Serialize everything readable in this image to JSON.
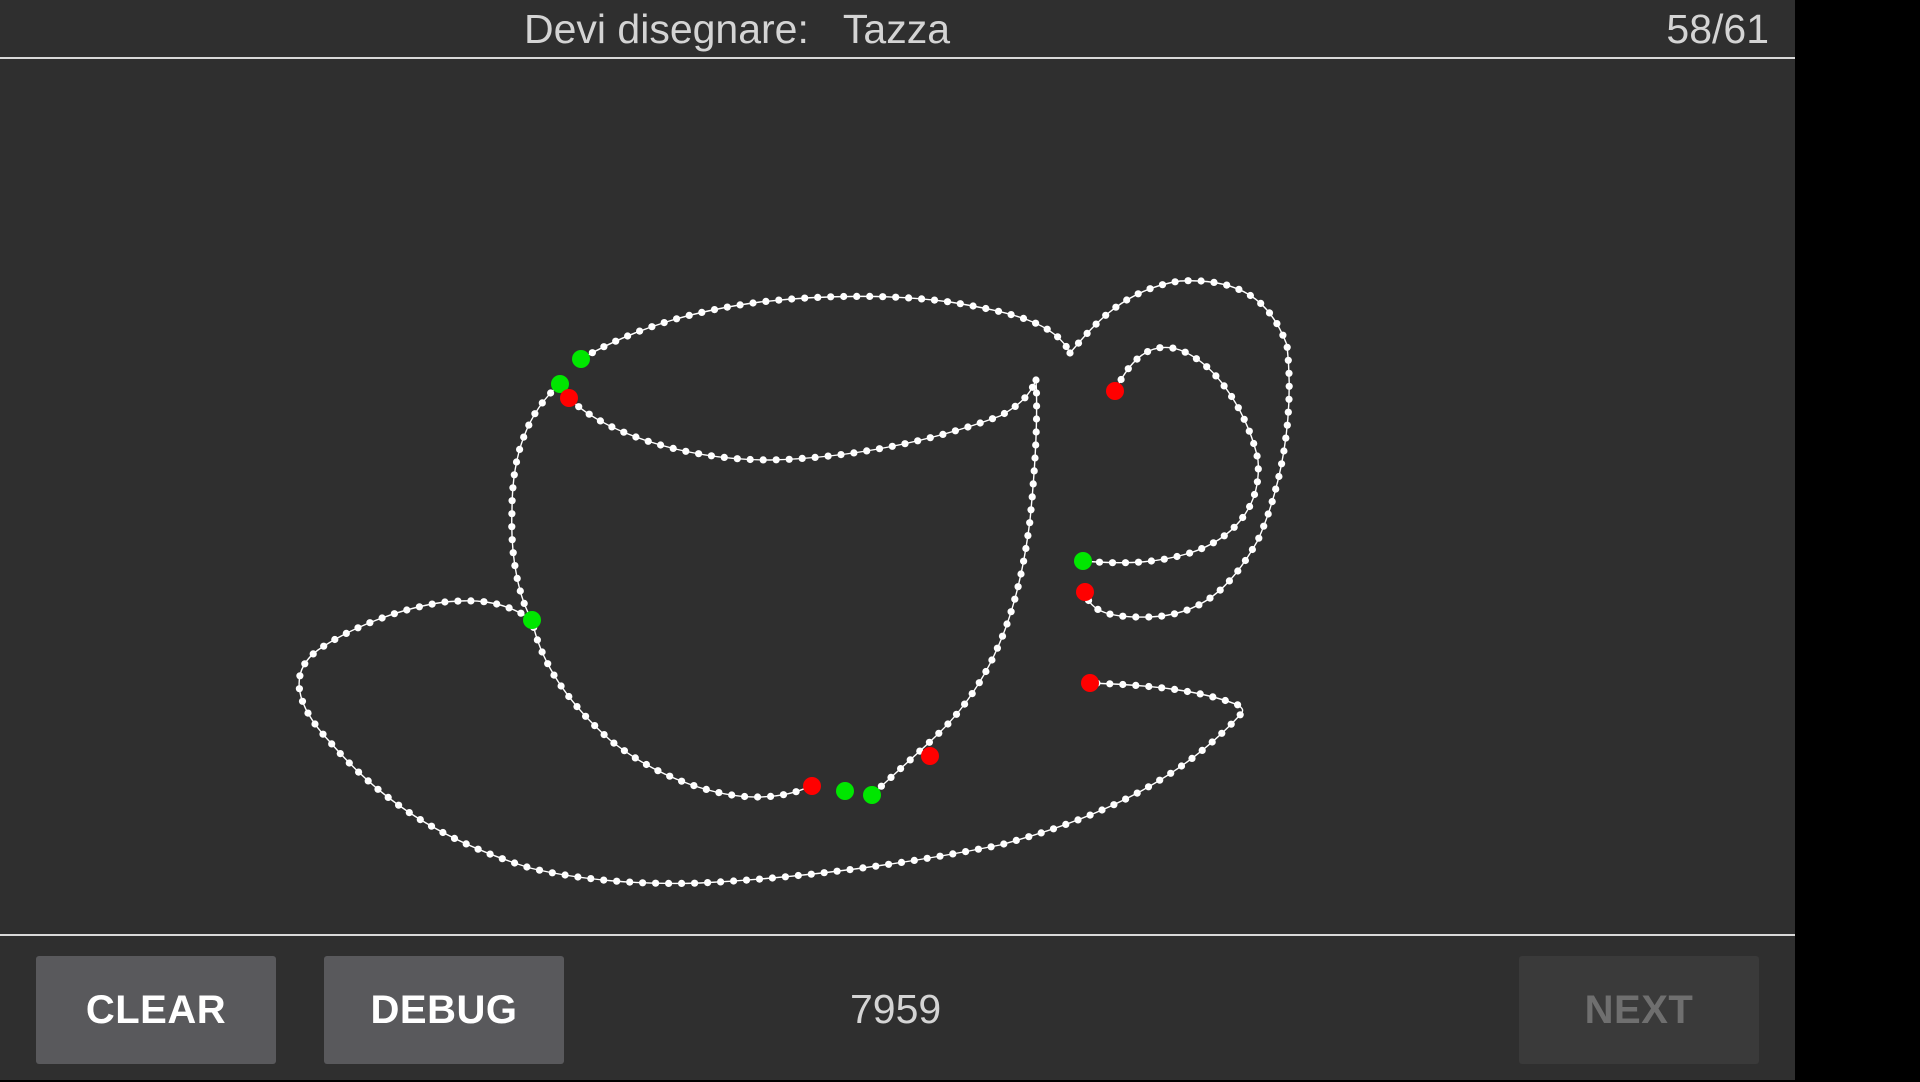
{
  "header": {
    "prompt_label": "Devi disegnare:",
    "prompt_word": "Tazza",
    "progress": "58/61"
  },
  "toolbar": {
    "clear_label": "CLEAR",
    "debug_label": "DEBUG",
    "score": "7959",
    "next_label": "NEXT",
    "next_enabled": false
  },
  "colors": {
    "background": "#2f2f2f",
    "stroke": "#ffffff",
    "stroke_start": "#00e600",
    "stroke_end": "#ff0000",
    "button": "#59595c",
    "button_disabled": "#3a3a3a"
  }
}
